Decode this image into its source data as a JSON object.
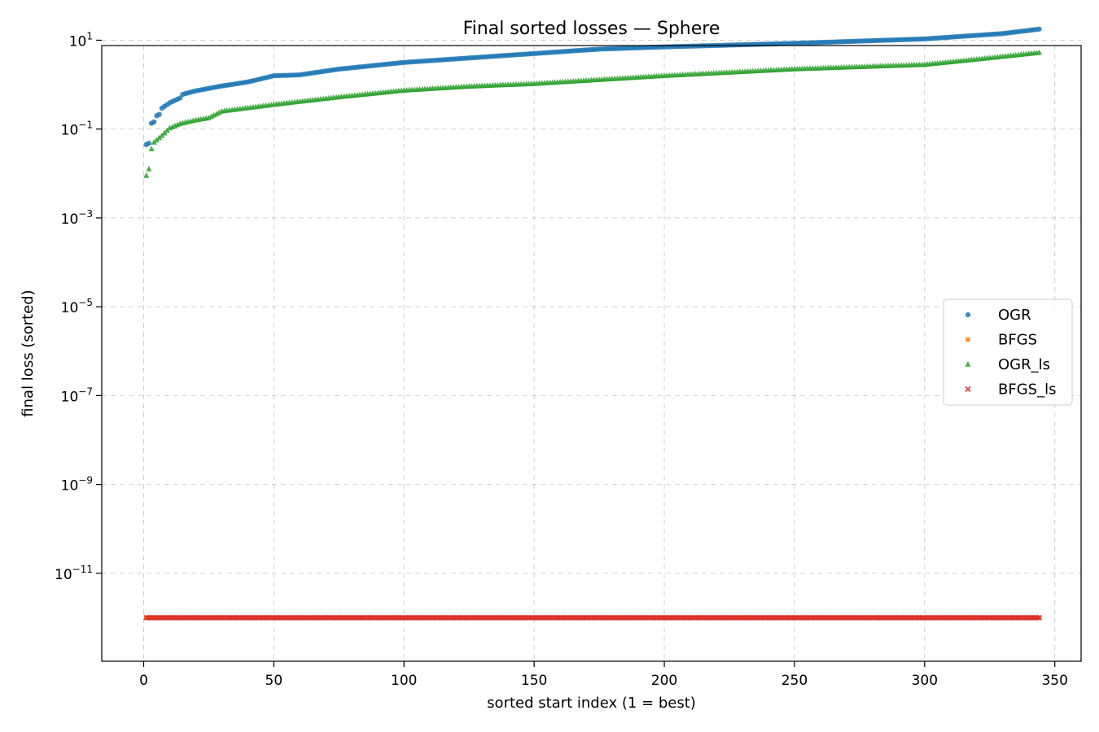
{
  "chart_data": {
    "type": "scatter",
    "title": "Final sorted losses — Sphere",
    "xlabel": "sorted start index (1 = best)",
    "ylabel": "final loss (sorted)",
    "x_scale": "linear",
    "y_scale": "log",
    "xlim": [
      -16.1,
      360.1
    ],
    "ylim_log10": [
      -12.98,
      0.88
    ],
    "x_ticks": [
      0,
      50,
      100,
      150,
      200,
      250,
      300,
      350
    ],
    "x_tick_labels": [
      "0",
      "50",
      "100",
      "150",
      "200",
      "250",
      "300",
      "350"
    ],
    "y_ticks_log10": [
      -11,
      -9,
      -7,
      -5,
      -3,
      -1,
      1
    ],
    "y_tick_labels": [
      {
        "base": "10",
        "exp": "−11"
      },
      {
        "base": "10",
        "exp": "−9"
      },
      {
        "base": "10",
        "exp": "−7"
      },
      {
        "base": "10",
        "exp": "−5"
      },
      {
        "base": "10",
        "exp": "−3"
      },
      {
        "base": "10",
        "exp": "−1"
      },
      {
        "base": "10",
        "exp": "1"
      }
    ],
    "grid": true,
    "legend_position": "center-right",
    "n_points": 344,
    "series": [
      {
        "name": "OGR",
        "marker": "circle",
        "color": "#1f77b4",
        "log10_anchors": [
          [
            1,
            -1.35
          ],
          [
            2,
            -1.32
          ],
          [
            3,
            -0.87
          ],
          [
            4,
            -0.84
          ],
          [
            5,
            -0.7
          ],
          [
            6,
            -0.67
          ],
          [
            7,
            -0.53
          ],
          [
            10,
            -0.41
          ],
          [
            14,
            -0.3
          ],
          [
            15,
            -0.22
          ],
          [
            20,
            -0.14
          ],
          [
            30,
            -0.03
          ],
          [
            40,
            0.06
          ],
          [
            50,
            0.2
          ],
          [
            60,
            0.22
          ],
          [
            75,
            0.35
          ],
          [
            100,
            0.5
          ],
          [
            125,
            0.6
          ],
          [
            150,
            0.7
          ],
          [
            175,
            0.8
          ],
          [
            200,
            0.85
          ],
          [
            250,
            0.93
          ],
          [
            300,
            1.03
          ],
          [
            330,
            1.15
          ],
          [
            344,
            1.25
          ]
        ]
      },
      {
        "name": "BFGS",
        "marker": "square",
        "color": "#ff7f0e",
        "log10_anchors": [
          [
            1,
            -12.0
          ],
          [
            344,
            -12.0
          ]
        ]
      },
      {
        "name": "OGR_ls",
        "marker": "triangle",
        "color": "#2ca02c",
        "log10_anchors": [
          [
            1,
            -2.05
          ],
          [
            2,
            -1.9
          ],
          [
            3,
            -1.45
          ],
          [
            4,
            -1.3
          ],
          [
            5,
            -1.25
          ],
          [
            7,
            -1.15
          ],
          [
            10,
            -0.98
          ],
          [
            14,
            -0.88
          ],
          [
            20,
            -0.8
          ],
          [
            25,
            -0.75
          ],
          [
            30,
            -0.6
          ],
          [
            50,
            -0.45
          ],
          [
            75,
            -0.28
          ],
          [
            100,
            -0.13
          ],
          [
            125,
            -0.04
          ],
          [
            150,
            0.02
          ],
          [
            200,
            0.2
          ],
          [
            250,
            0.35
          ],
          [
            300,
            0.45
          ],
          [
            325,
            0.6
          ],
          [
            344,
            0.72
          ]
        ]
      },
      {
        "name": "BFGS_ls",
        "marker": "x",
        "color": "#d62728",
        "log10_anchors": [
          [
            1,
            -12.0
          ],
          [
            344,
            -12.0
          ]
        ]
      }
    ]
  }
}
